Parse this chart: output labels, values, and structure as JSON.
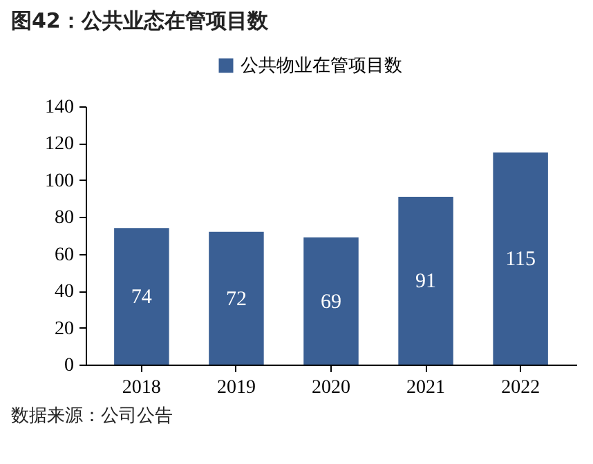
{
  "chart_data": {
    "type": "bar",
    "title": "图42：公共业态在管项目数",
    "categories": [
      "2018",
      "2019",
      "2020",
      "2021",
      "2022"
    ],
    "series": [
      {
        "name": "公共物业在管项目数",
        "color": "#3a5f94",
        "values": [
          74,
          72,
          69,
          91,
          115
        ]
      }
    ],
    "ylim": [
      0,
      140
    ],
    "yticks": [
      0,
      20,
      40,
      60,
      80,
      100,
      120,
      140
    ],
    "grid": false,
    "legend": "top",
    "data_labels": true,
    "annotations": [
      "数据来源：公司公告"
    ]
  }
}
